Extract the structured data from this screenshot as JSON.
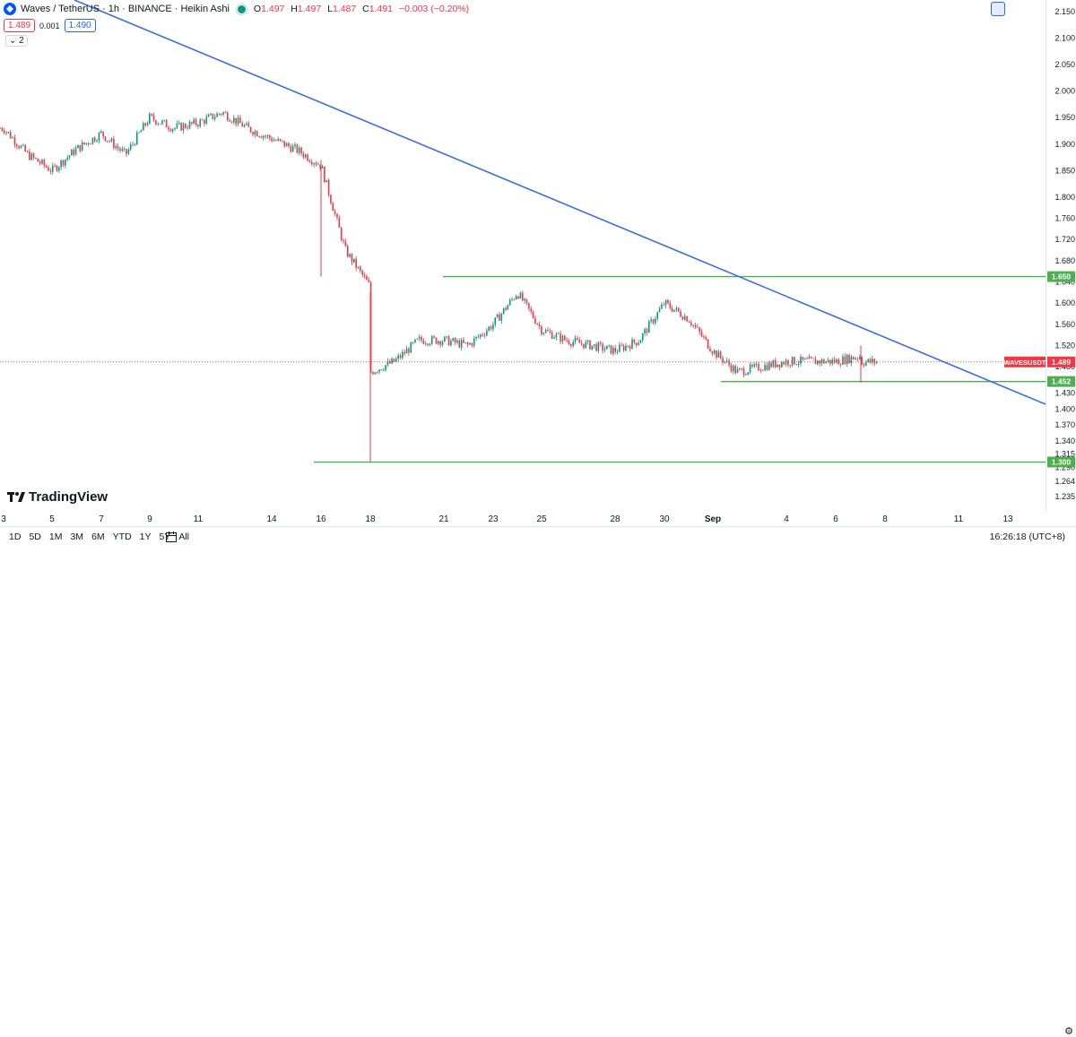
{
  "legend": {
    "symbol": "Waves / TetherUS · 1h · BINANCE · Heikin Ashi",
    "open_label": "O",
    "open": "1.497",
    "high_label": "H",
    "high": "1.497",
    "low_label": "L",
    "low": "1.487",
    "close_label": "C",
    "close": "1.491",
    "change": "−0.003 (−0.20%)"
  },
  "quote": {
    "sell": "1.489",
    "spread": "0.001",
    "buy": "1.490"
  },
  "indicators_toggle": "⌄ 2",
  "watermark": "TradingView",
  "price_axis": {
    "ticks": [
      "2.150",
      "2.100",
      "2.050",
      "2.000",
      "1.950",
      "1.900",
      "1.850",
      "1.800",
      "1.760",
      "1.720",
      "1.680",
      "1.640",
      "1.600",
      "1.560",
      "1.520",
      "1.480",
      "1.450",
      "1.430",
      "1.400",
      "1.370",
      "1.340",
      "1.315",
      "1.290",
      "1.264",
      "1.235"
    ],
    "tick_values": [
      2.15,
      2.1,
      2.05,
      2.0,
      1.95,
      1.9,
      1.85,
      1.8,
      1.76,
      1.72,
      1.68,
      1.64,
      1.6,
      1.56,
      1.52,
      1.48,
      1.45,
      1.43,
      1.4,
      1.37,
      1.34,
      1.315,
      1.29,
      1.264,
      1.235
    ]
  },
  "time_axis": {
    "labels": [
      "3",
      "5",
      "7",
      "9",
      "11",
      "14",
      "16",
      "18",
      "21",
      "23",
      "25",
      "28",
      "30",
      "Sep",
      "4",
      "6",
      "8",
      "11",
      "13"
    ],
    "bold": [
      "Sep"
    ]
  },
  "chart_data": {
    "type": "candlestick",
    "chart_style": "Heikin Ashi",
    "interval": "1h",
    "y_range": [
      1.235,
      2.16
    ],
    "last_price": 1.489,
    "last_price_label": "WAVESUSDT",
    "last_price_text": "1.489",
    "horizontal_levels": [
      {
        "value": 1.65,
        "label": "1.650",
        "start_date": "20",
        "color": "#4caf50"
      },
      {
        "value": 1.452,
        "label": "1.452",
        "start_date": "Sep 1",
        "color": "#4caf50"
      },
      {
        "value": 1.3,
        "label": "1.300",
        "start_date": "15",
        "color": "#4caf50"
      }
    ],
    "trendline": {
      "color": "#3d6fd9",
      "from": [
        "2",
        2.17
      ],
      "to": [
        "14",
        1.39
      ]
    },
    "price_path": [
      [
        "3",
        1.93
      ],
      [
        "4",
        1.88
      ],
      [
        "5",
        1.85
      ],
      [
        "6",
        1.89
      ],
      [
        "7",
        1.92
      ],
      [
        "8",
        1.88
      ],
      [
        "9",
        1.95
      ],
      [
        "10",
        1.93
      ],
      [
        "11",
        1.94
      ],
      [
        "12",
        1.96
      ],
      [
        "13",
        1.93
      ],
      [
        "14",
        1.91
      ],
      [
        "15",
        1.89
      ],
      [
        "16",
        1.86
      ],
      [
        "17",
        1.7
      ],
      [
        "18",
        1.63
      ],
      [
        "18",
        1.47
      ],
      [
        "19",
        1.49
      ],
      [
        "20",
        1.53
      ],
      [
        "21",
        1.53
      ],
      [
        "22",
        1.52
      ],
      [
        "23",
        1.56
      ],
      [
        "24",
        1.62
      ],
      [
        "25",
        1.55
      ],
      [
        "26",
        1.53
      ],
      [
        "27",
        1.52
      ],
      [
        "28",
        1.51
      ],
      [
        "29",
        1.53
      ],
      [
        "30",
        1.6
      ],
      [
        "31",
        1.57
      ],
      [
        "Sep",
        1.51
      ],
      [
        "2",
        1.47
      ],
      [
        "3",
        1.48
      ],
      [
        "4",
        1.49
      ],
      [
        "5",
        1.49
      ],
      [
        "6",
        1.49
      ],
      [
        "7",
        1.5
      ],
      [
        "7",
        1.489
      ]
    ],
    "spikes": [
      [
        "16",
        1.65,
        1.87
      ],
      [
        "18",
        1.3,
        1.62
      ],
      [
        "7",
        1.45,
        1.52
      ]
    ]
  },
  "bottom_bar": {
    "ranges": [
      "1D",
      "5D",
      "1M",
      "3M",
      "6M",
      "YTD",
      "1Y",
      "5Y",
      "All"
    ],
    "clock": "16:26:18 (UTC+8)"
  },
  "colors": {
    "up": "#089981",
    "down": "#f23645",
    "level": "#4caf50",
    "trend": "#3d6fd9",
    "axis_text": "#131722"
  }
}
